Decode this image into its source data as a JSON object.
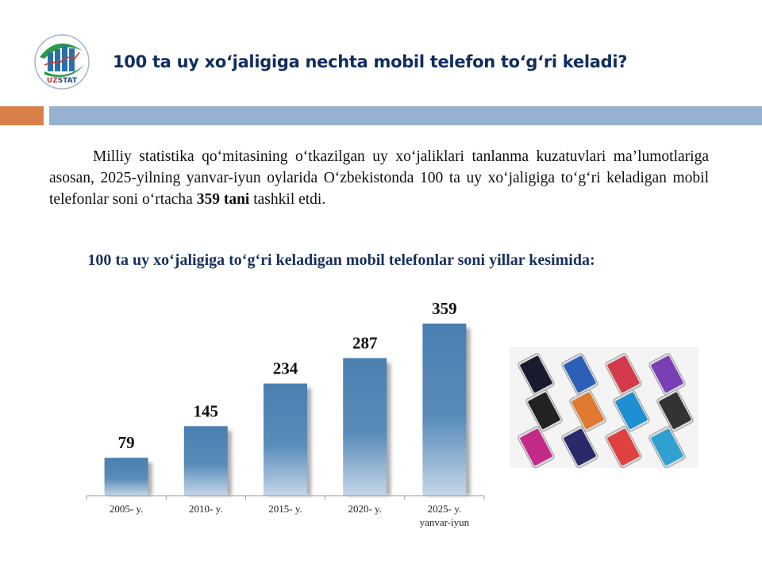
{
  "header": {
    "logo_text": "UZSTAT",
    "title": "100 ta uy xo‘jaligiga nechta mobil telefon to‘g‘ri keladi?"
  },
  "paragraph": {
    "before": "Milliy statistika qo‘mitasining o‘tkazilgan uy xo‘jaliklari tanlanma kuzatuvlari ma’lumotlariga asosan, 2025-yilning yanvar-iyun oylarida O‘zbekistonda 100 ta uy xo‘jaligiga to‘g‘ri keladigan mobil telefonlar soni o‘rtacha ",
    "bold": "359 tani",
    "after": " tashkil etdi."
  },
  "colors": {
    "accent_orange": "#d9804a",
    "accent_blue": "#95b3d1",
    "bar": "#4a7fb0",
    "title": "#0f2d5f"
  },
  "chart_data": {
    "type": "bar",
    "title": "100 ta uy xo‘jaligiga to‘g‘ri keladigan mobil telefonlar soni yillar kesimida:",
    "categories": [
      [
        "2005- y."
      ],
      [
        "2010- y."
      ],
      [
        "2015- y."
      ],
      [
        "2020- y."
      ],
      [
        "2025- y.",
        "yanvar-iyun"
      ]
    ],
    "values": [
      79,
      145,
      234,
      287,
      359
    ],
    "data_labels": [
      "79",
      "145",
      "234",
      "287",
      "359"
    ],
    "ylim": [
      0,
      400
    ],
    "grid": false,
    "legend": "none"
  },
  "image": {
    "icon": "smartphones-photo"
  }
}
